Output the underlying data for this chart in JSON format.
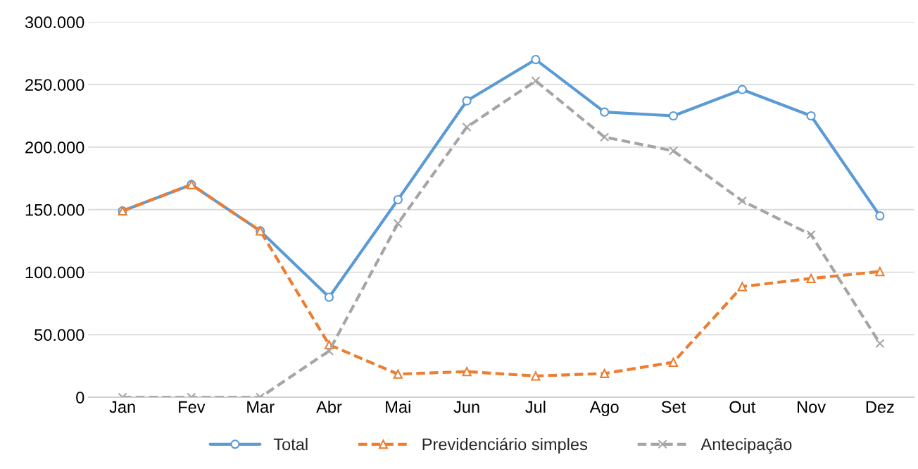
{
  "chart_data": {
    "type": "line",
    "categories": [
      "Jan",
      "Fev",
      "Mar",
      "Abr",
      "Mai",
      "Jun",
      "Jul",
      "Ago",
      "Set",
      "Out",
      "Nov",
      "Dez"
    ],
    "series": [
      {
        "name": "Total",
        "color": "#5b9bd5",
        "marker": "circle",
        "line_style": "solid",
        "values": [
          149000,
          170000,
          133000,
          80000,
          158000,
          237000,
          270000,
          228000,
          225000,
          246000,
          225000,
          145000
        ]
      },
      {
        "name": "Previdenciário simples",
        "color": "#ed7d31",
        "marker": "triangle",
        "line_style": "dashed",
        "values": [
          149000,
          170000,
          133000,
          42000,
          18500,
          20500,
          17000,
          19000,
          28000,
          88500,
          95000,
          100500
        ]
      },
      {
        "name": "Antecipação",
        "color": "#a5a5a5",
        "marker": "cross",
        "line_style": "dashed",
        "values": [
          0,
          0,
          0,
          37000,
          139000,
          216000,
          253000,
          208000,
          197000,
          157000,
          130000,
          43000
        ]
      }
    ],
    "ylim": [
      0,
      300000
    ],
    "yticks": [
      0,
      {
        "value": 50000,
        "label": "50.000"
      },
      {
        "value": 100000,
        "label": "100.000"
      },
      {
        "value": 150000,
        "label": "150.000"
      },
      {
        "value": 200000,
        "label": "200.000"
      },
      {
        "value": 250000,
        "label": "250.000"
      },
      {
        "value": 300000,
        "label": "300.000"
      }
    ],
    "grid": "y",
    "legend": "bottom"
  }
}
